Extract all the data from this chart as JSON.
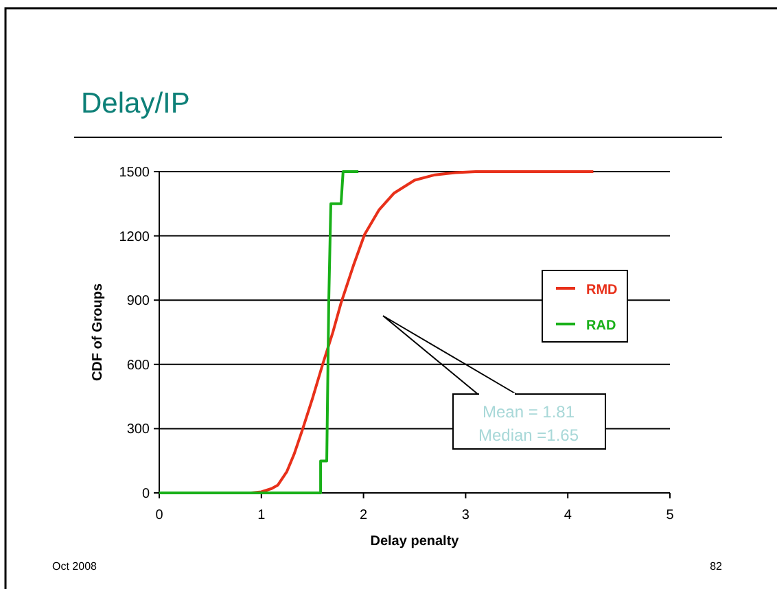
{
  "chart_data": {
    "type": "line",
    "title": "Delay/IP",
    "xlabel": "Delay penalty",
    "ylabel": "CDF of Groups",
    "xlim": [
      0,
      5
    ],
    "xticks": [
      0,
      1,
      2,
      3,
      4,
      5
    ],
    "ylim": [
      0,
      1500
    ],
    "yticks": [
      0,
      300,
      600,
      900,
      1200,
      1500
    ],
    "grid": "y",
    "legend": "right",
    "marker": "none",
    "line_style": "solid",
    "series": [
      {
        "name": "RMD",
        "color": "#e8301a",
        "x": [
          0,
          0.9,
          1.0,
          1.1,
          1.16,
          1.25,
          1.32,
          1.4,
          1.5,
          1.6,
          1.7,
          1.78,
          1.9,
          2.01,
          2.15,
          2.3,
          2.5,
          2.7,
          2.9,
          3.1,
          3.5,
          4.25
        ],
        "values": [
          0,
          0,
          5,
          20,
          36,
          100,
          180,
          292,
          440,
          600,
          750,
          887,
          1060,
          1206,
          1320,
          1400,
          1460,
          1485,
          1495,
          1500,
          1500,
          1500
        ]
      },
      {
        "name": "RAD",
        "color": "#18b018",
        "x": [
          0,
          1.58,
          1.58,
          1.64,
          1.66,
          1.68,
          1.78,
          1.8,
          1.95
        ],
        "values": [
          0,
          0,
          149,
          149,
          900,
          1350,
          1350,
          1500,
          1500
        ]
      }
    ],
    "annotations": [
      "Mean = 1.81\nMedian =1.65",
      "Oct 2008",
      "82"
    ]
  }
}
